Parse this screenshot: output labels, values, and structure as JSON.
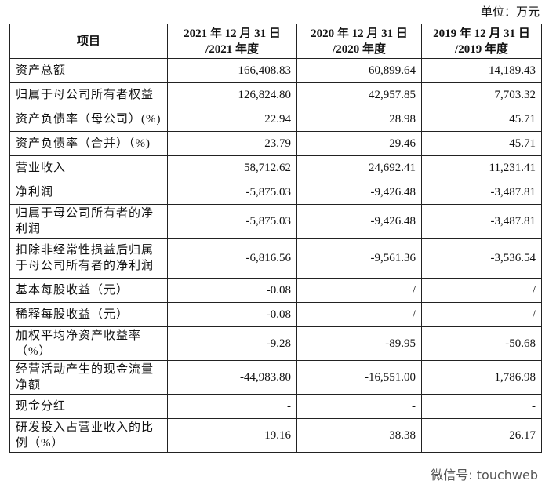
{
  "unit": "单位：万元",
  "table": {
    "header": [
      "项目",
      "2021 年 12 月 31 日\n/2021 年度",
      "2020 年 12 月 31 日\n/2020 年度",
      "2019 年 12 月 31 日\n/2019 年度"
    ],
    "rows": [
      [
        "资产总额",
        "166,408.83",
        "60,899.64",
        "14,189.43"
      ],
      [
        "归属于母公司所有者权益",
        "126,824.80",
        "42,957.85",
        "7,703.32"
      ],
      [
        "资产负债率（母公司）(%)",
        "22.94",
        "28.98",
        "45.71"
      ],
      [
        "资产负债率（合并）（%)",
        "23.79",
        "29.46",
        "45.71"
      ],
      [
        "营业收入",
        "58,712.62",
        "24,692.41",
        "11,231.41"
      ],
      [
        "净利润",
        "-5,875.03",
        "-9,426.48",
        "-3,487.81"
      ],
      [
        "归属于母公司所有者的净\n利润",
        "-5,875.03",
        "-9,426.48",
        "-3,487.81"
      ],
      [
        "扣除非经常性损益后归属\n于母公司所有者的净利润",
        "-6,816.56",
        "-9,561.36",
        "-3,536.54"
      ],
      [
        "基本每股收益（元）",
        "-0.08",
        "/",
        "/"
      ],
      [
        "稀释每股收益（元）",
        "-0.08",
        "/",
        "/"
      ],
      [
        "加权平均净资产收益率\n（%）",
        "-9.28",
        "-89.95",
        "-50.68"
      ],
      [
        "经营活动产生的现金流量\n净额",
        "-44,983.80",
        "-16,551.00",
        "1,786.98"
      ],
      [
        "现金分红",
        "-",
        "-",
        "-"
      ],
      [
        "研发投入占营业收入的比\n例（%）",
        "19.16",
        "38.38",
        "26.17"
      ]
    ]
  },
  "watermark": "微信号: touchweb"
}
